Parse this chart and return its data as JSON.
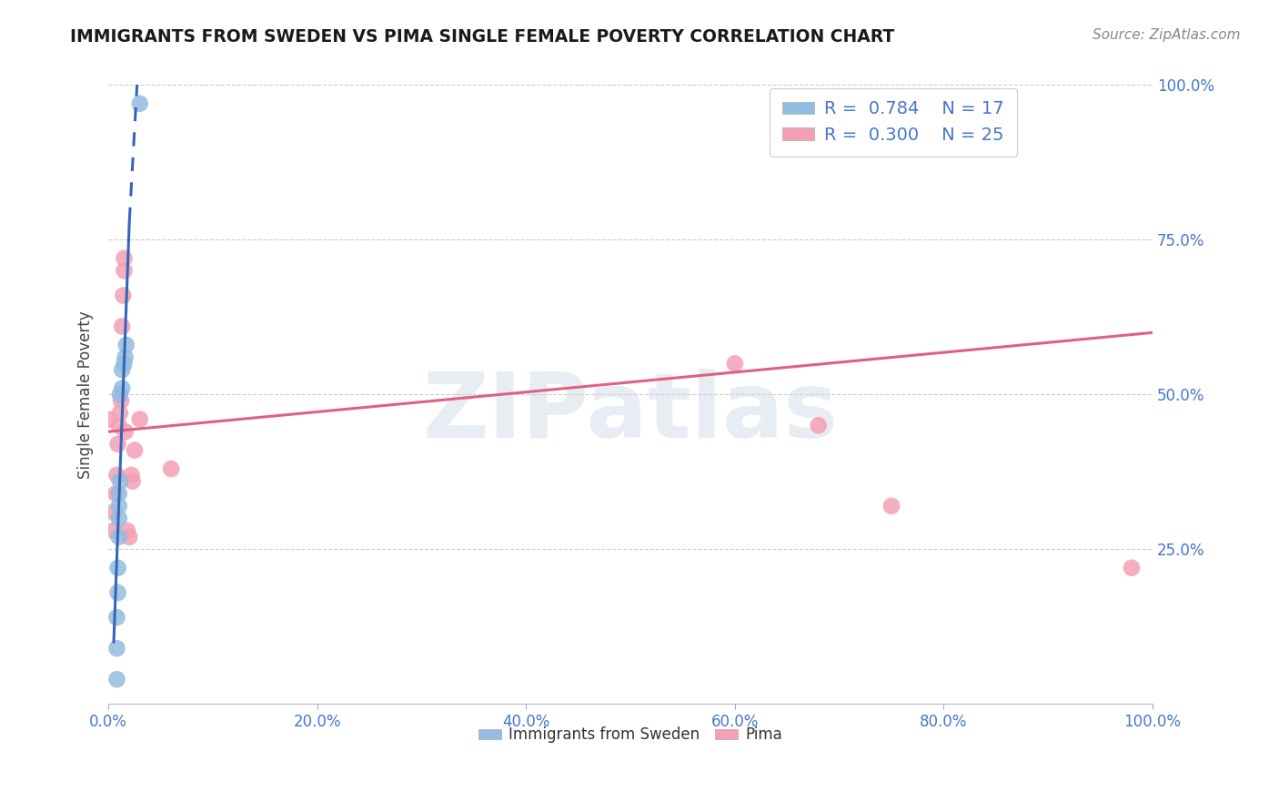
{
  "title": "IMMIGRANTS FROM SWEDEN VS PIMA SINGLE FEMALE POVERTY CORRELATION CHART",
  "source": "Source: ZipAtlas.com",
  "ylabel": "Single Female Poverty",
  "xlim": [
    0.0,
    1.0
  ],
  "ylim": [
    0.0,
    1.0
  ],
  "xtick_labels": [
    "0.0%",
    "20.0%",
    "40.0%",
    "60.0%",
    "80.0%",
    "100.0%"
  ],
  "xtick_vals": [
    0.0,
    0.2,
    0.4,
    0.6,
    0.8,
    1.0
  ],
  "ytick_labels": [
    "100.0%",
    "75.0%",
    "50.0%",
    "25.0%"
  ],
  "ytick_vals": [
    1.0,
    0.75,
    0.5,
    0.25
  ],
  "sweden_color": "#92bce0",
  "pima_color": "#f4a0b5",
  "sweden_line_color": "#3366bb",
  "pima_line_color": "#e06080",
  "background_color": "#ffffff",
  "watermark": "ZIPatlas",
  "legend_R_sweden": "0.784",
  "legend_N_sweden": "17",
  "legend_R_pima": "0.300",
  "legend_N_pima": "25",
  "sweden_points_x": [
    0.008,
    0.008,
    0.008,
    0.009,
    0.009,
    0.01,
    0.01,
    0.01,
    0.01,
    0.011,
    0.011,
    0.013,
    0.013,
    0.015,
    0.016,
    0.017,
    0.03
  ],
  "sweden_points_y": [
    0.04,
    0.09,
    0.14,
    0.18,
    0.22,
    0.27,
    0.3,
    0.32,
    0.34,
    0.36,
    0.5,
    0.51,
    0.54,
    0.55,
    0.56,
    0.58,
    0.97
  ],
  "pima_points_x": [
    0.0,
    0.005,
    0.005,
    0.007,
    0.008,
    0.009,
    0.01,
    0.011,
    0.012,
    0.013,
    0.014,
    0.015,
    0.015,
    0.016,
    0.018,
    0.02,
    0.022,
    0.023,
    0.025,
    0.03,
    0.06,
    0.6,
    0.68,
    0.75,
    0.98
  ],
  "pima_points_y": [
    0.46,
    0.28,
    0.31,
    0.34,
    0.37,
    0.42,
    0.45,
    0.47,
    0.49,
    0.61,
    0.66,
    0.7,
    0.72,
    0.44,
    0.28,
    0.27,
    0.37,
    0.36,
    0.41,
    0.46,
    0.38,
    0.55,
    0.45,
    0.32,
    0.22
  ],
  "sweden_solid_line": {
    "x0": 0.005,
    "y0": 0.1,
    "x1": 0.02,
    "y1": 0.78
  },
  "sweden_dashed_line": {
    "x0": 0.02,
    "y0": 0.78,
    "x1": 0.028,
    "y1": 1.02
  },
  "pima_line": {
    "x0": 0.0,
    "y0": 0.44,
    "x1": 1.0,
    "y1": 0.6
  },
  "title_color": "#1a1a1a",
  "axis_label_color": "#444444",
  "tick_color": "#4477cc",
  "grid_color": "#cccccc",
  "legend_text_color": "#4477cc"
}
